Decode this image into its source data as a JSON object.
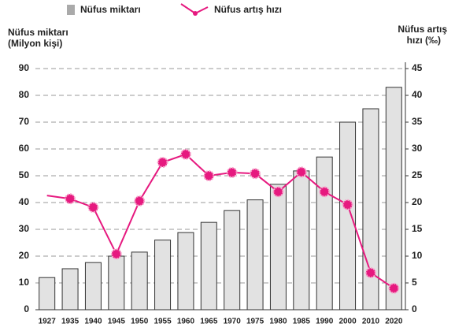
{
  "chart_data": {
    "type": "bar",
    "y_label": [
      "Nüfus miktarı",
      "(Milyon kişi)"
    ],
    "y2_label": [
      "Nüfus artış",
      "hızı (‰)"
    ],
    "categories": [
      "1927",
      "1935",
      "1940",
      "1945",
      "1950",
      "1955",
      "1960",
      "1965",
      "1970",
      "1975",
      "1980",
      "1985",
      "1990",
      "2000",
      "2010",
      "2020"
    ],
    "series": [
      {
        "name": "Nüfus miktarı",
        "type": "bar",
        "color": "#e2e2e2",
        "values": [
          12,
          15.3,
          17.6,
          20,
          21.5,
          26,
          28.8,
          32.6,
          37,
          41,
          46.8,
          51.8,
          57,
          70,
          75,
          83
        ]
      },
      {
        "name": "Nüfus artış hızı",
        "type": "line",
        "axis": "y2",
        "color": "#e6197f",
        "values": [
          21.3,
          20.7,
          19.1,
          10.4,
          20.3,
          27.5,
          29,
          25,
          25.6,
          25.4,
          22,
          25.7,
          22,
          19.6,
          6.9,
          4
        ]
      }
    ],
    "ylim": [
      0,
      90
    ],
    "yticks": [
      0,
      10,
      20,
      30,
      40,
      50,
      60,
      70,
      80,
      90
    ],
    "y2lim": [
      0,
      45
    ],
    "y2ticks": [
      0,
      5,
      10,
      15,
      20,
      25,
      30,
      35,
      40,
      45
    ],
    "grid": true
  }
}
